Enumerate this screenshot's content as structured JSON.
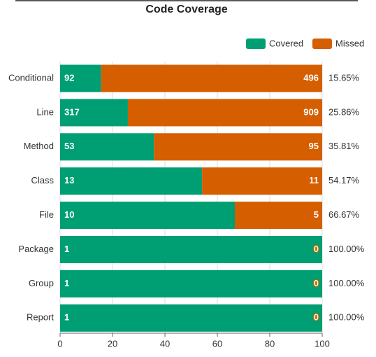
{
  "chart_data": {
    "type": "bar100h",
    "title": "Code Coverage",
    "categories": [
      "Conditional",
      "Line",
      "Method",
      "Class",
      "File",
      "Package",
      "Group",
      "Report"
    ],
    "series": [
      {
        "name": "Covered",
        "color": "#009e73",
        "values": [
          92,
          317,
          53,
          13,
          10,
          1,
          1,
          1
        ]
      },
      {
        "name": "Missed",
        "color": "#d55e00",
        "values": [
          496,
          909,
          95,
          11,
          5,
          0,
          0,
          0
        ]
      }
    ],
    "percent_labels": [
      "15.65%",
      "25.86%",
      "35.81%",
      "54.17%",
      "66.67%",
      "100.00%",
      "100.00%",
      "100.00%"
    ],
    "xlim": [
      0,
      100
    ],
    "xticks": [
      0,
      20,
      40,
      60,
      80,
      100
    ],
    "grid": true,
    "legend": "top-right"
  }
}
